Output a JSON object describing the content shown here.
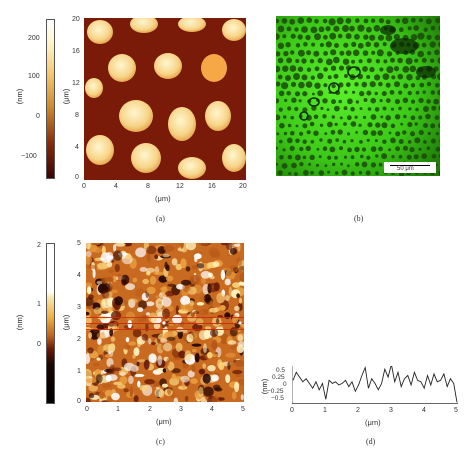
{
  "panel_a": {
    "colorbar": {
      "label": "(nm)",
      "ticks": [
        "200",
        "100",
        "0",
        "−100"
      ]
    },
    "ylabel": "(μm)",
    "xlabel": "(μm)",
    "y_ticks": [
      "20",
      "16",
      "12",
      "8",
      "4",
      "0"
    ],
    "x_ticks": [
      "0",
      "4",
      "8",
      "12",
      "16",
      "20"
    ],
    "caption": "(a)"
  },
  "panel_b": {
    "scalebar": "50 μm",
    "caption": "(b)"
  },
  "panel_c": {
    "colorbar": {
      "label": "(nm)",
      "ticks": [
        "2",
        "1",
        "0"
      ]
    },
    "ylabel": "(μm)",
    "xlabel": "(μm)",
    "y_ticks": [
      "5",
      "4",
      "3",
      "2",
      "1",
      "0"
    ],
    "x_ticks": [
      "0",
      "1",
      "2",
      "3",
      "4",
      "5"
    ],
    "caption": "(c)"
  },
  "panel_d": {
    "ylabel": "(nm)",
    "xlabel": "(μm)",
    "y_ticks": [
      "0.5",
      "0.25",
      "0",
      "−0.25",
      "−0.5"
    ],
    "x_ticks": [
      "0",
      "1",
      "2",
      "3",
      "4",
      "5"
    ],
    "caption": "(d)"
  },
  "chart_data": {
    "type": "line",
    "xlabel": "(μm)",
    "ylabel": "(nm)",
    "xlim": [
      0,
      5
    ],
    "ylim": [
      -0.6,
      0.6
    ],
    "x": [
      0,
      0.1,
      0.2,
      0.3,
      0.4,
      0.5,
      0.6,
      0.7,
      0.8,
      0.9,
      1.0,
      1.1,
      1.2,
      1.3,
      1.4,
      1.5,
      1.6,
      1.7,
      1.8,
      1.9,
      2.0,
      2.1,
      2.2,
      2.3,
      2.4,
      2.5,
      2.6,
      2.7,
      2.8,
      2.9,
      3.0,
      3.1,
      3.2,
      3.3,
      3.4,
      3.5,
      3.6,
      3.7,
      3.8,
      3.9,
      4.0,
      4.1,
      4.2,
      4.3,
      4.4,
      4.5,
      4.6,
      4.7,
      4.8,
      4.9,
      5.0
    ],
    "series": [
      {
        "values": [
          0.15,
          0.4,
          0.25,
          0.1,
          0.2,
          0.05,
          -0.1,
          0.1,
          -0.15,
          0.05,
          -0.45,
          0.15,
          0.05,
          0.1,
          0.0,
          0.05,
          0.15,
          -0.05,
          0.1,
          -0.2,
          0.0,
          0.3,
          0.55,
          -0.1,
          0.2,
          0.05,
          -0.15,
          0.05,
          0.5,
          0.25,
          0.65,
          0.1,
          0.4,
          -0.05,
          0.2,
          0.3,
          0.0,
          0.4,
          0.15,
          0.1,
          -0.1,
          0.3,
          0.0,
          0.35,
          0.1,
          0.15,
          0.35,
          -0.05,
          0.2,
          0.05,
          -0.55
        ]
      }
    ]
  }
}
